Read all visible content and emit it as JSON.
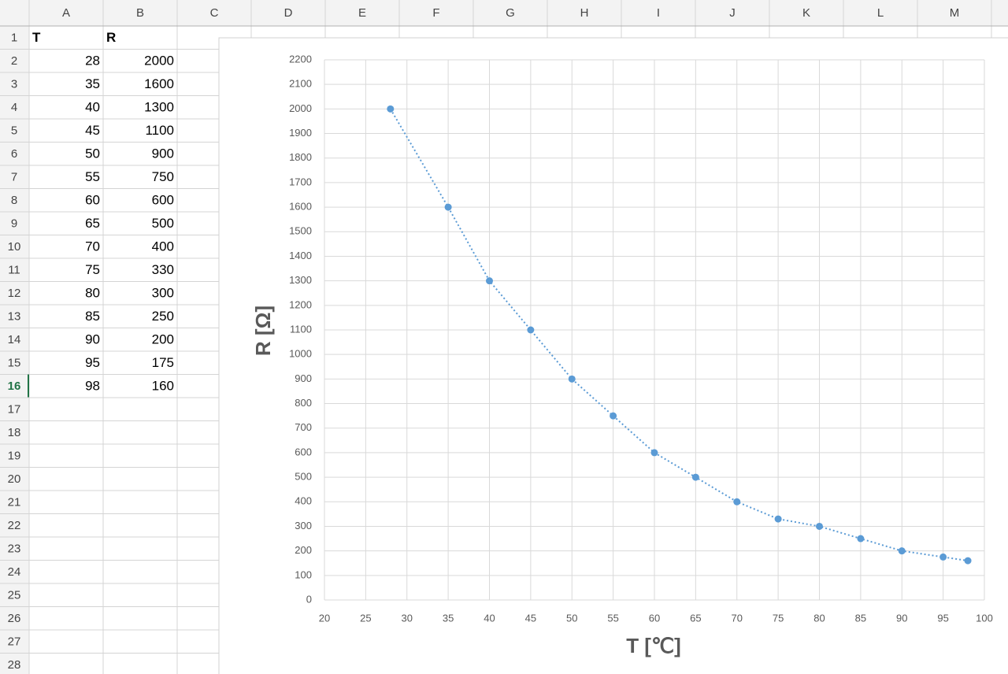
{
  "sheet": {
    "columns": [
      "A",
      "B",
      "C",
      "D",
      "E",
      "F",
      "G",
      "H",
      "I",
      "J",
      "K",
      "L",
      "M"
    ],
    "rows": [
      1,
      2,
      3,
      4,
      5,
      6,
      7,
      8,
      9,
      10,
      11,
      12,
      13,
      14,
      15,
      16,
      17,
      18,
      19,
      20,
      21,
      22,
      23,
      24,
      25,
      26,
      27,
      28
    ],
    "cells": [
      [
        "T",
        "R"
      ],
      [
        28,
        2000
      ],
      [
        35,
        1600
      ],
      [
        40,
        1300
      ],
      [
        45,
        1100
      ],
      [
        50,
        900
      ],
      [
        55,
        750
      ],
      [
        60,
        600
      ],
      [
        65,
        500
      ],
      [
        70,
        400
      ],
      [
        75,
        330
      ],
      [
        80,
        300
      ],
      [
        85,
        250
      ],
      [
        90,
        200
      ],
      [
        95,
        175
      ],
      [
        98,
        160
      ]
    ]
  },
  "chart_data": {
    "type": "scatter",
    "xlabel": "T [℃]",
    "ylabel": "R [Ω]",
    "x": [
      28,
      35,
      40,
      45,
      50,
      55,
      60,
      65,
      70,
      75,
      80,
      85,
      90,
      95,
      98
    ],
    "series": [
      {
        "color": "#5b9bd5",
        "values": [
          2000,
          1600,
          1300,
          1100,
          900,
          750,
          600,
          500,
          400,
          330,
          300,
          250,
          200,
          175,
          160
        ]
      }
    ],
    "trendline": "dotted",
    "xlim": [
      20,
      100
    ],
    "xticks": [
      20,
      25,
      30,
      35,
      40,
      45,
      50,
      55,
      60,
      65,
      70,
      75,
      80,
      85,
      90,
      95,
      100
    ],
    "ylim": [
      0,
      2200
    ],
    "yticks": [
      0,
      100,
      200,
      300,
      400,
      500,
      600,
      700,
      800,
      900,
      1000,
      1100,
      1200,
      1300,
      1400,
      1500,
      1600,
      1700,
      1800,
      1900,
      2000,
      2100,
      2200
    ],
    "grid": true
  }
}
